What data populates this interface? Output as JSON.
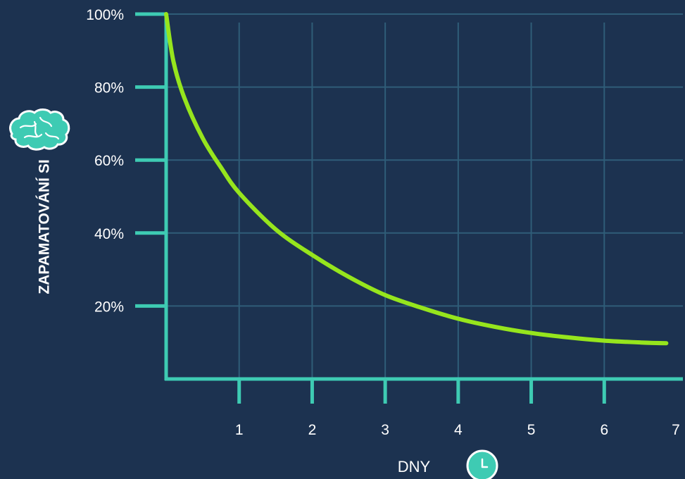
{
  "chart_data": {
    "type": "line",
    "title": "",
    "xlabel": "DNY",
    "ylabel": "ZAPAMATOVÁNÍ SI",
    "xlim": [
      0,
      7
    ],
    "ylim": [
      0,
      100
    ],
    "x_ticks": [
      "1",
      "2",
      "3",
      "4",
      "5",
      "6",
      "7"
    ],
    "y_ticks": [
      "20%",
      "40%",
      "60%",
      "80%",
      "100%"
    ],
    "grid": true,
    "series": [
      {
        "x": [
          0,
          0.1,
          0.25,
          0.5,
          0.75,
          1,
          1.5,
          2,
          2.5,
          3,
          3.5,
          4,
          4.5,
          5,
          5.5,
          6,
          6.5,
          6.85
        ],
        "values": [
          100,
          87,
          77,
          66,
          58,
          51,
          41,
          34,
          28,
          23,
          19.5,
          16.5,
          14.3,
          12.6,
          11.4,
          10.5,
          10,
          9.8
        ]
      }
    ],
    "colors": {
      "background": "#1c3250",
      "axis": "#3ecbb3",
      "grid": "#2f5d78",
      "curve": "#96e51d",
      "icon_fill": "#3ecbb3"
    },
    "icons": {
      "y_axis_icon": "brain-icon",
      "x_axis_icon": "clock-icon"
    }
  }
}
